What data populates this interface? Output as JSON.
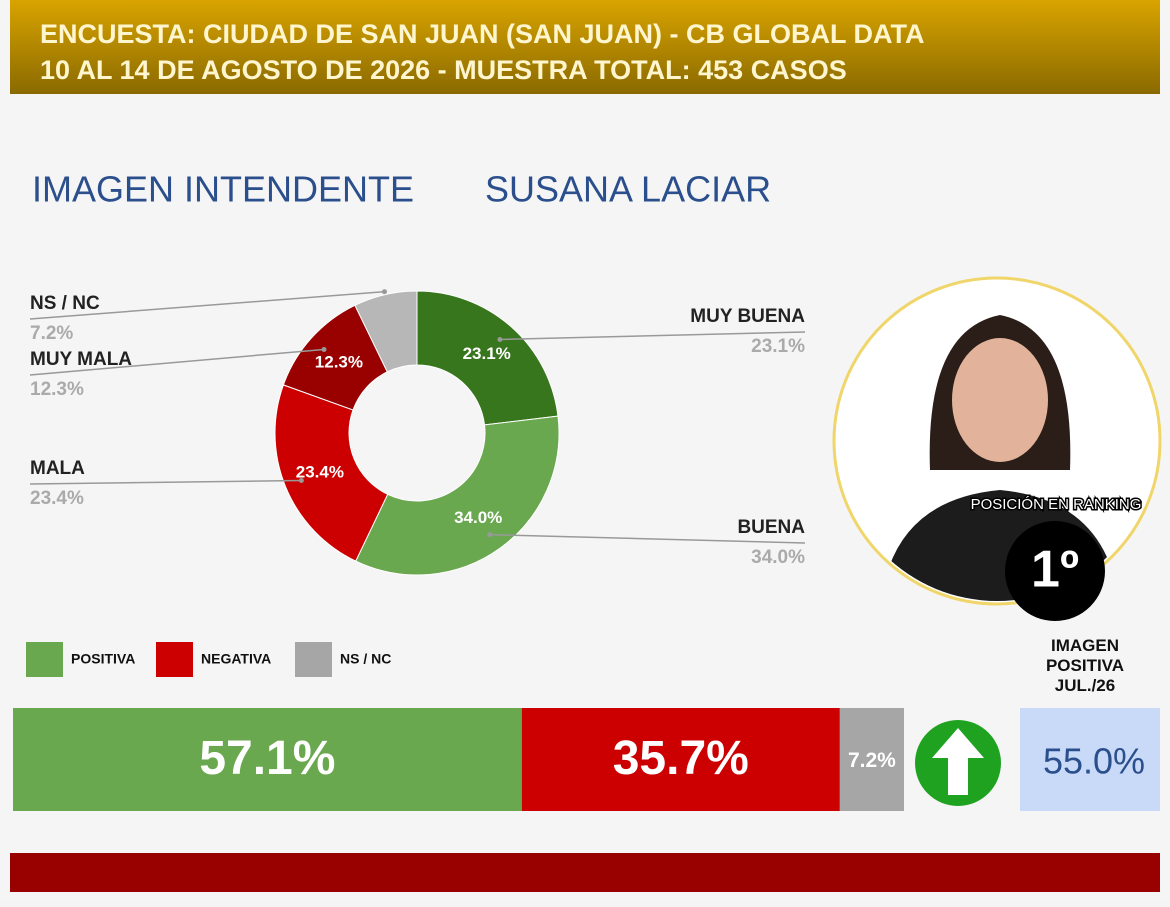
{
  "header": {
    "line1": "ENCUESTA: CIUDAD DE SAN JUAN (SAN JUAN) - CB GLOBAL DATA",
    "line2": "10 AL 14 DE AGOSTO DE 2026 - MUESTRA TOTAL: 453 CASOS"
  },
  "chart_data": [
    {
      "type": "pie",
      "title": "IMAGEN INTENDENTE",
      "subtitle": "SUSANA LACIAR",
      "categories": [
        "MUY BUENA",
        "BUENA",
        "MALA",
        "MUY MALA",
        "NS / NC"
      ],
      "values": [
        23.1,
        34.0,
        23.4,
        12.3,
        7.2
      ],
      "value_labels": [
        "23.1%",
        "34.0%",
        "23.4%",
        "12.3%",
        "7.2%"
      ],
      "colors": [
        "#38761d",
        "#6aa84f",
        "#cc0000",
        "#990000",
        "#b7b7b7"
      ]
    },
    {
      "type": "stacked-bar",
      "series": [
        {
          "name": "POSITIVA",
          "color": "#6aa84f",
          "values": [
            57.1
          ],
          "value_labels": [
            "57.1%"
          ]
        },
        {
          "name": "NEGATIVA",
          "color": "#cc0000",
          "values": [
            35.7
          ],
          "value_labels": [
            "35.7%"
          ]
        },
        {
          "name": "NS / NC",
          "color": "#a6a6a6",
          "values": [
            7.2
          ],
          "value_labels": [
            "7.2%"
          ]
        }
      ]
    }
  ],
  "ranking": {
    "label": "POSICIÓN EN RANKING",
    "value": "1º"
  },
  "previous": {
    "label": "IMAGEN POSITIVA JUL./26",
    "value": "55.0%"
  }
}
